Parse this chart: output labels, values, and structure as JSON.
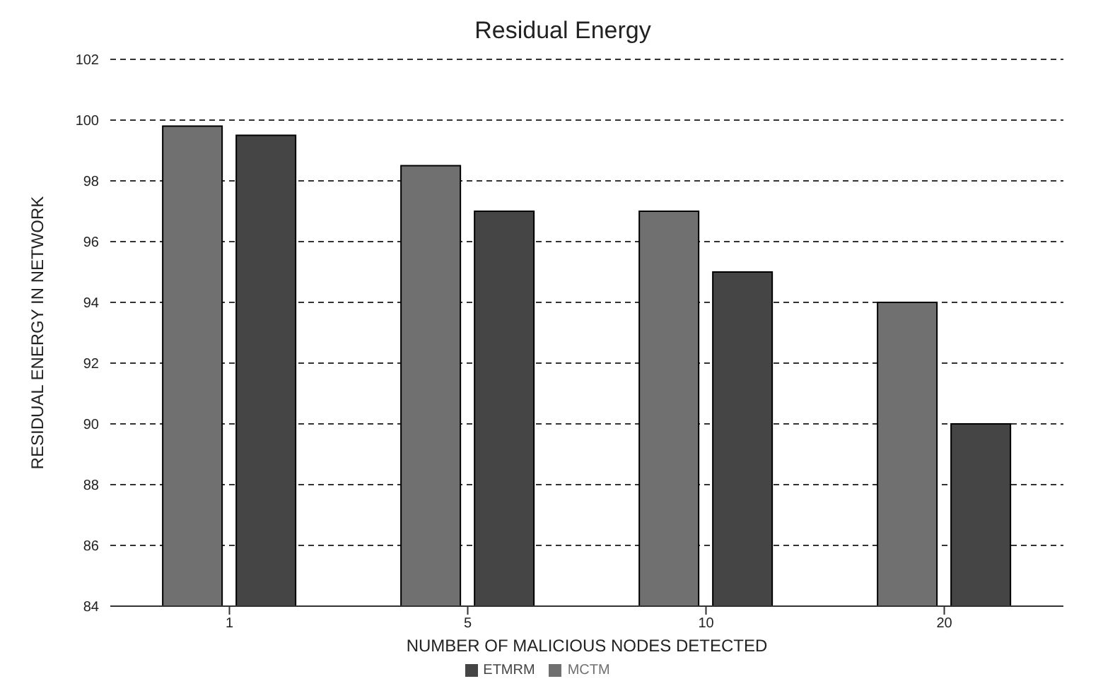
{
  "chart_data": {
    "type": "bar",
    "title": "Residual Energy",
    "xlabel": "NUMBER OF MALICIOUS NODES DETECTED",
    "ylabel": "RESIDUAL ENERGY IN NETWORK",
    "categories": [
      "1",
      "5",
      "10",
      "20"
    ],
    "series": [
      {
        "name": "MCTM",
        "color": "#707070",
        "values": [
          99.8,
          98.5,
          97,
          94
        ]
      },
      {
        "name": "ETMRM",
        "color": "#454545",
        "values": [
          99.5,
          97,
          95,
          90
        ]
      }
    ],
    "ylim": [
      84,
      102
    ],
    "yticks": [
      84,
      86,
      88,
      90,
      92,
      94,
      96,
      98,
      100,
      102
    ],
    "grid": "y",
    "legend": "bottom"
  }
}
